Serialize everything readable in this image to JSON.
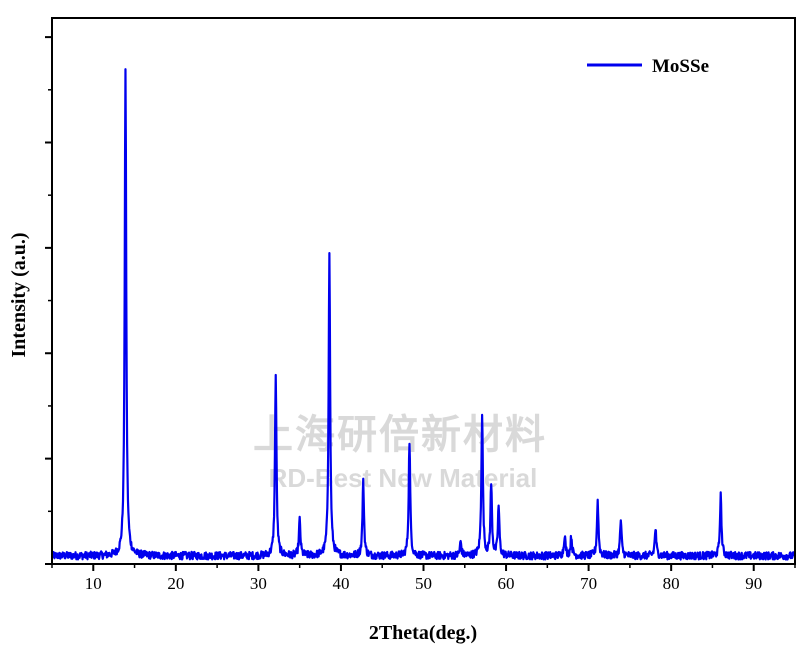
{
  "chart_data": {
    "type": "line",
    "title": "",
    "xlabel": "2Theta(deg.)",
    "ylabel": "Intensity (a.u.)",
    "xlim": [
      5,
      95
    ],
    "ylim": [
      0,
      100
    ],
    "x_ticks": [
      10,
      20,
      30,
      40,
      50,
      60,
      70,
      80,
      90
    ],
    "x_tick_labels": [
      "10",
      "20",
      "30",
      "40",
      "50",
      "60",
      "70",
      "80",
      "90"
    ],
    "y_tick_labels_shown": false,
    "grid": false,
    "legend_position": "top-right",
    "series": [
      {
        "name": "MoSSe",
        "color": "#0000ee",
        "baseline": 1.5,
        "peaks": [
          {
            "x": 13.9,
            "height": 89
          },
          {
            "x": 32.1,
            "height": 33
          },
          {
            "x": 35.0,
            "height": 6.5
          },
          {
            "x": 38.6,
            "height": 55
          },
          {
            "x": 42.7,
            "height": 13.5
          },
          {
            "x": 48.3,
            "height": 21
          },
          {
            "x": 54.5,
            "height": 2.5
          },
          {
            "x": 57.1,
            "height": 26
          },
          {
            "x": 58.2,
            "height": 13
          },
          {
            "x": 59.1,
            "height": 9
          },
          {
            "x": 67.1,
            "height": 3.8
          },
          {
            "x": 67.9,
            "height": 3.5
          },
          {
            "x": 71.1,
            "height": 10
          },
          {
            "x": 73.9,
            "height": 6.5
          },
          {
            "x": 78.1,
            "height": 5
          },
          {
            "x": 86.0,
            "height": 11
          }
        ]
      }
    ]
  },
  "watermark": {
    "cn": "上海研倍新材料",
    "en": "RD-Best New Material"
  }
}
